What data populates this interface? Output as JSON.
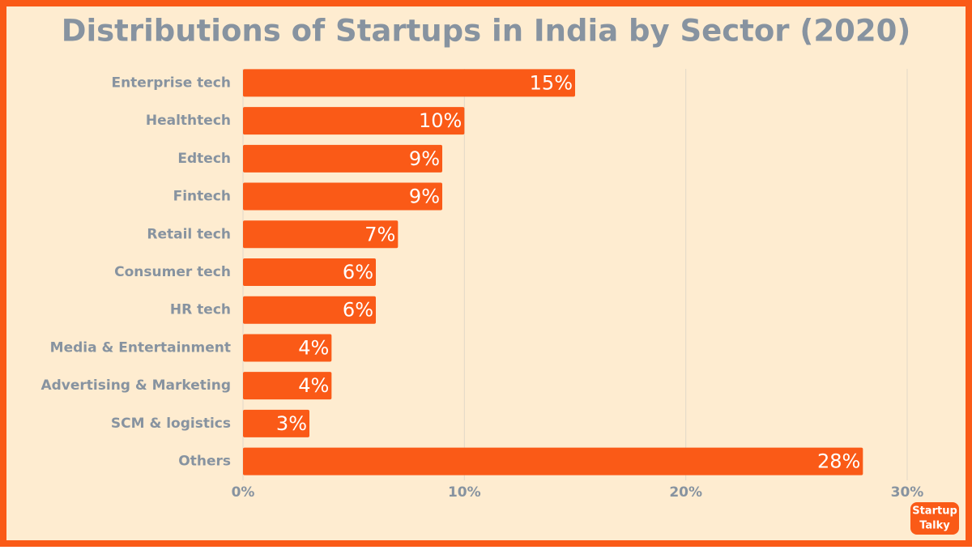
{
  "chart_data": {
    "type": "bar",
    "orientation": "horizontal",
    "title": "Distributions of Startups in India by Sector (2020)",
    "categories": [
      "Enterprise tech",
      "Healthtech",
      "Edtech",
      "Fintech",
      "Retail tech",
      "Consumer tech",
      "HR tech",
      "Media & Entertainment",
      "Advertising & Marketing",
      "SCM & logistics",
      "Others"
    ],
    "values": [
      15,
      10,
      9,
      9,
      7,
      6,
      6,
      4,
      4,
      3,
      28
    ],
    "value_labels": [
      "15%",
      "10%",
      "9%",
      "9%",
      "7%",
      "6%",
      "6%",
      "4%",
      "4%",
      "3%",
      "28%"
    ],
    "color": "#fa5a17",
    "xlim": [
      0,
      30
    ],
    "xticks": [
      {
        "value": 0,
        "label": "0%"
      },
      {
        "value": 10,
        "label": "10%"
      },
      {
        "value": 20,
        "label": "20%"
      },
      {
        "value": 30,
        "label": "30%"
      }
    ],
    "grid": true
  },
  "logo": {
    "line1": "Startup",
    "line2": "Talky"
  }
}
